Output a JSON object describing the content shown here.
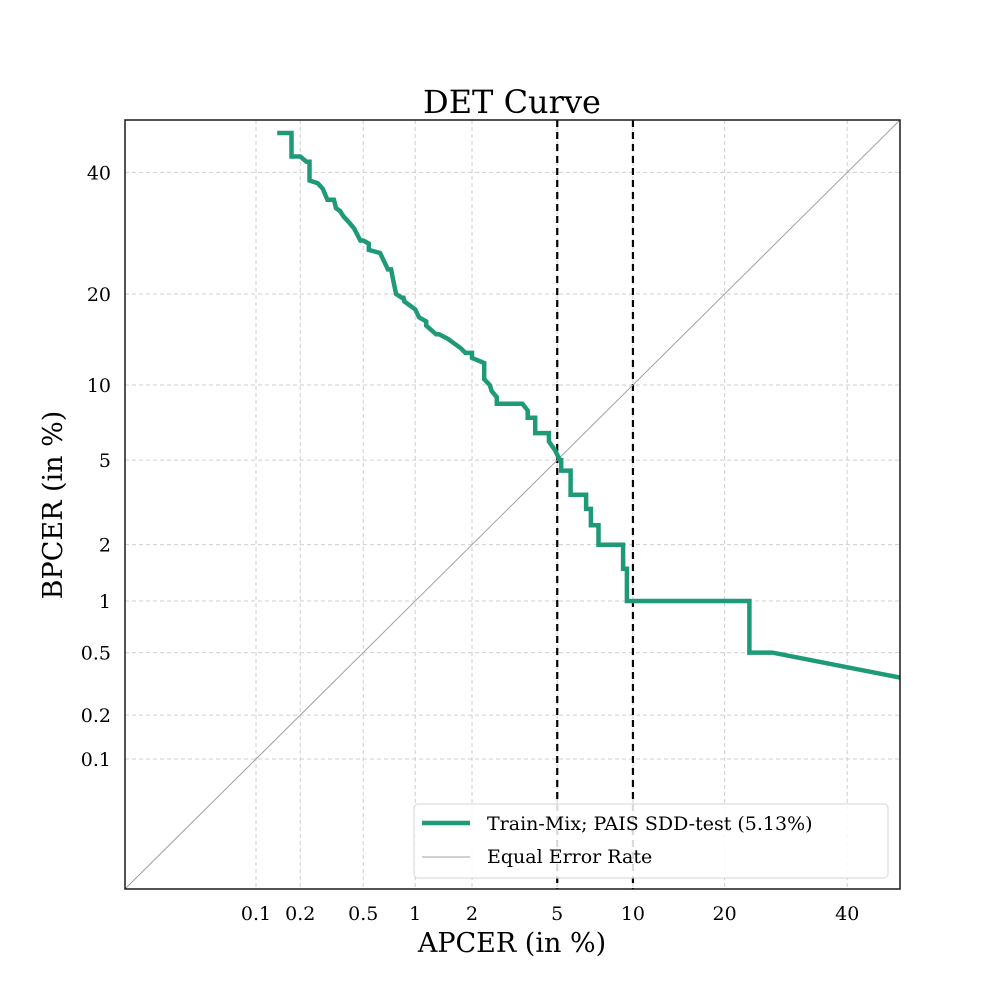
{
  "chart_data": {
    "type": "line",
    "title": "DET Curve",
    "xlabel": "APCER (in %)",
    "ylabel": "BPCER (in %)",
    "scale": "probit",
    "xlim": [
      0.01,
      50
    ],
    "ylim": [
      0.01,
      50
    ],
    "grid": true,
    "x_ticks": [
      {
        "value": 0.1,
        "label": "0.1"
      },
      {
        "value": 0.2,
        "label": "0.2"
      },
      {
        "value": 0.5,
        "label": "0.5"
      },
      {
        "value": 1,
        "label": "1"
      },
      {
        "value": 2,
        "label": "2"
      },
      {
        "value": 5,
        "label": "5"
      },
      {
        "value": 10,
        "label": "10"
      },
      {
        "value": 20,
        "label": "20"
      },
      {
        "value": 40,
        "label": "40"
      }
    ],
    "y_ticks": [
      {
        "value": 0.1,
        "label": "0.1"
      },
      {
        "value": 0.2,
        "label": "0.2"
      },
      {
        "value": 0.5,
        "label": "0.5"
      },
      {
        "value": 1,
        "label": "1"
      },
      {
        "value": 2,
        "label": "2"
      },
      {
        "value": 5,
        "label": "5"
      },
      {
        "value": 10,
        "label": "10"
      },
      {
        "value": 20,
        "label": "20"
      },
      {
        "value": 40,
        "label": "40"
      }
    ],
    "reference_lines": [
      {
        "axis": "x",
        "value": 5,
        "style": "dashed",
        "color": "#000000"
      },
      {
        "axis": "x",
        "value": 10,
        "style": "dashed",
        "color": "#000000"
      }
    ],
    "legend_position": "lower-right",
    "series": [
      {
        "name": "Train-Mix; PAIS SDD-test (5.13%)",
        "color": "#1f9a78",
        "x": [
          0.14,
          0.175,
          0.175,
          0.175,
          0.2,
          0.22,
          0.23,
          0.23,
          0.26,
          0.28,
          0.3,
          0.33,
          0.34,
          0.36,
          0.38,
          0.41,
          0.44,
          0.48,
          0.5,
          0.54,
          0.54,
          0.63,
          0.7,
          0.73,
          0.75,
          0.78,
          0.84,
          0.86,
          0.87,
          0.87,
          1.0,
          1.05,
          1.15,
          1.15,
          1.3,
          1.35,
          1.5,
          1.75,
          1.85,
          2.0,
          2.0,
          2.3,
          2.3,
          2.45,
          2.5,
          2.65,
          2.65,
          3.5,
          3.7,
          3.7,
          4.0,
          4.0,
          4.6,
          4.6,
          4.9,
          5.13,
          5.2,
          5.2,
          5.7,
          5.7,
          6.6,
          6.6,
          6.9,
          6.9,
          7.4,
          7.4,
          9.2,
          9.2,
          9.5,
          9.5,
          23.5,
          23.5,
          27.0,
          50.0
        ],
        "y": [
          47.5,
          47.5,
          45.0,
          43.0,
          43.0,
          42.0,
          42.0,
          38.5,
          38.0,
          37.0,
          35.0,
          35.0,
          33.5,
          33.0,
          32.0,
          31.0,
          30.0,
          28.0,
          28.0,
          27.5,
          26.5,
          26.0,
          23.5,
          23.5,
          22.0,
          20.0,
          19.5,
          19.5,
          19.0,
          19.0,
          18.0,
          17.0,
          16.5,
          16.0,
          15.0,
          15.0,
          14.5,
          13.5,
          13.0,
          13.0,
          12.5,
          12.0,
          10.5,
          10.0,
          9.5,
          9.0,
          8.5,
          8.5,
          8.0,
          7.5,
          7.5,
          6.5,
          6.5,
          6.0,
          5.5,
          5.0,
          5.0,
          4.5,
          4.5,
          3.5,
          3.5,
          3.0,
          3.0,
          2.5,
          2.5,
          2.0,
          2.0,
          1.5,
          1.5,
          1.0,
          1.0,
          0.5,
          0.5,
          0.35
        ]
      },
      {
        "name": "Equal Error Rate",
        "color": "#a0a0a0",
        "x": [
          0.01,
          50
        ],
        "y": [
          0.01,
          50
        ]
      }
    ]
  }
}
